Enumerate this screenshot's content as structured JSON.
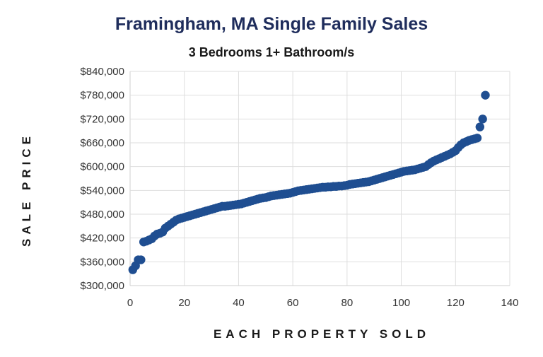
{
  "chart_data": {
    "type": "scatter",
    "title": "Framingham, MA Single Family Sales",
    "subtitle": "3 Bedrooms 1+ Bathroom/s",
    "xlabel": "EACH PROPERTY SOLD",
    "ylabel": "SALE PRICE",
    "xlim": [
      0,
      140
    ],
    "ylim": [
      300000,
      840000
    ],
    "x_ticks": [
      0,
      20,
      40,
      60,
      80,
      100,
      120,
      140
    ],
    "x_tick_labels": [
      "0",
      "20",
      "40",
      "60",
      "80",
      "100",
      "120",
      "140"
    ],
    "y_ticks": [
      300000,
      360000,
      420000,
      480000,
      540000,
      600000,
      660000,
      720000,
      780000,
      840000
    ],
    "y_tick_labels": [
      "$300,000",
      "$360,000",
      "$420,000",
      "$480,000",
      "$540,000",
      "$600,000",
      "$660,000",
      "$720,000",
      "$780,000",
      "$840,000"
    ],
    "grid": true,
    "marker_color": "#1f4e91",
    "series": [
      {
        "name": "Sales",
        "x": [
          1,
          2,
          3,
          4,
          5,
          6,
          7,
          8,
          9,
          10,
          11,
          12,
          13,
          14,
          15,
          16,
          17,
          18,
          19,
          20,
          21,
          22,
          23,
          24,
          25,
          26,
          27,
          28,
          29,
          30,
          31,
          32,
          33,
          34,
          35,
          36,
          37,
          38,
          39,
          40,
          41,
          42,
          43,
          44,
          45,
          46,
          47,
          48,
          49,
          50,
          51,
          52,
          53,
          54,
          55,
          56,
          57,
          58,
          59,
          60,
          61,
          62,
          63,
          64,
          65,
          66,
          67,
          68,
          69,
          70,
          71,
          72,
          73,
          74,
          75,
          76,
          77,
          78,
          79,
          80,
          81,
          82,
          83,
          84,
          85,
          86,
          87,
          88,
          89,
          90,
          91,
          92,
          93,
          94,
          95,
          96,
          97,
          98,
          99,
          100,
          101,
          102,
          103,
          104,
          105,
          106,
          107,
          108,
          109,
          110,
          111,
          112,
          113,
          114,
          115,
          116,
          117,
          118,
          119,
          120,
          121,
          122,
          123,
          124,
          125,
          126,
          127,
          128,
          129,
          130,
          131
        ],
        "values": [
          340000,
          350000,
          365000,
          365000,
          410000,
          412000,
          415000,
          418000,
          425000,
          430000,
          432000,
          435000,
          445000,
          450000,
          455000,
          460000,
          465000,
          468000,
          470000,
          472000,
          474000,
          476000,
          478000,
          480000,
          482000,
          484000,
          486000,
          488000,
          490000,
          492000,
          494000,
          496000,
          498000,
          500000,
          500000,
          501000,
          502000,
          503000,
          504000,
          505000,
          506000,
          508000,
          510000,
          512000,
          514000,
          516000,
          518000,
          520000,
          521000,
          522000,
          524000,
          526000,
          527000,
          528000,
          529000,
          530000,
          531000,
          532000,
          533000,
          535000,
          537000,
          539000,
          540000,
          541000,
          542000,
          543000,
          544000,
          545000,
          546000,
          547000,
          548000,
          548000,
          549000,
          549000,
          550000,
          550000,
          551000,
          551000,
          552000,
          553000,
          555000,
          556000,
          557000,
          558000,
          559000,
          560000,
          561000,
          562000,
          564000,
          566000,
          568000,
          570000,
          572000,
          574000,
          576000,
          578000,
          580000,
          582000,
          584000,
          586000,
          588000,
          589000,
          590000,
          591000,
          592000,
          594000,
          596000,
          598000,
          600000,
          605000,
          610000,
          614000,
          617000,
          620000,
          623000,
          626000,
          629000,
          632000,
          636000,
          640000,
          648000,
          655000,
          660000,
          663000,
          666000,
          668000,
          670000,
          672000,
          700000,
          720000,
          780000
        ]
      }
    ]
  }
}
